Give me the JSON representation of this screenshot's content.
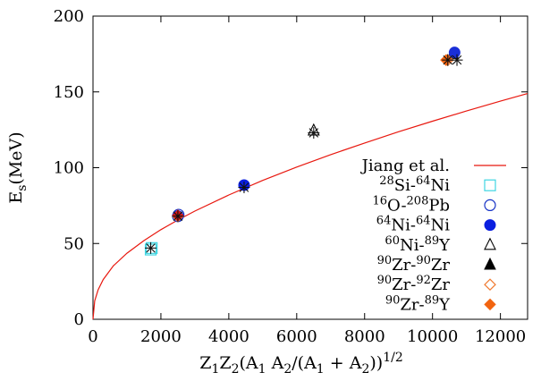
{
  "chart_data": {
    "type": "scatter",
    "xlabel_html": "Z<sub>1</sub>Z<sub>2</sub>(A<sub>1</sub> A<sub>2</sub>/(A<sub>1</sub> + A<sub>2</sub>))<sup>1/2</sup>",
    "xlabel": "Z1Z2(A1 A2/(A1 + A2))^1/2",
    "ylabel": "Es(MeV)",
    "xlim": [
      0,
      12800
    ],
    "ylim": [
      0,
      200
    ],
    "xticks": [
      0,
      2000,
      4000,
      6000,
      8000,
      10000,
      12000
    ],
    "yticks": [
      0,
      50,
      100,
      150,
      200
    ],
    "grid": false,
    "legend_position": "right",
    "curve": {
      "name": "Jiang et al.",
      "color": "#e8180f",
      "x": [
        0,
        50,
        150,
        300,
        600,
        1000,
        1500,
        2000,
        2500,
        3000,
        4000,
        5000,
        6000,
        7000,
        8000,
        9000,
        10000,
        11000,
        12000,
        12800
      ],
      "y": [
        0,
        12.1,
        19.4,
        26.2,
        35.3,
        43.6,
        51.9,
        59.1,
        65.5,
        71.4,
        82.0,
        91.6,
        100.4,
        108.6,
        116.3,
        123.7,
        130.7,
        137.4,
        143.9,
        148.9
      ]
    },
    "series": [
      {
        "name": "28Si-64Ni",
        "marker": "square-open",
        "color": "#3fd6e2",
        "points": [
          [
            1700,
            46
          ],
          [
            1730,
            47
          ]
        ]
      },
      {
        "name": "16O-208Pb",
        "marker": "circle-open",
        "color": "#1733c6",
        "points": [
          [
            2500,
            68
          ],
          [
            2520,
            69
          ]
        ]
      },
      {
        "name": "64Ni-64Ni",
        "marker": "circle-filled",
        "color": "#0a1fe0",
        "points": [
          [
            4450,
            88.5
          ]
        ]
      },
      {
        "name": "60Ni-89Y",
        "marker": "triangle-open",
        "color": "#000000",
        "points": [
          [
            6500,
            124.5
          ]
        ]
      },
      {
        "name": "90Zr-90Zr",
        "marker": "triangle-filled",
        "color": "#000000",
        "points": [
          [
            10600,
            175
          ]
        ]
      },
      {
        "name": "90Zr-92Zr",
        "marker": "diamond-open",
        "color": "#f07a30",
        "points": [
          [
            2500,
            68
          ],
          [
            10450,
            171
          ]
        ]
      },
      {
        "name": "90Zr-89Y",
        "marker": "diamond-filled",
        "color": "#f26410",
        "points": [
          [
            10400,
            171
          ]
        ]
      }
    ],
    "stars": {
      "color": "#111111",
      "points": [
        [
          1700,
          47
        ],
        [
          2500,
          68
        ],
        [
          4450,
          87
        ],
        [
          6500,
          123
        ],
        [
          10450,
          171
        ],
        [
          10720,
          171
        ]
      ]
    },
    "extra_markers": [
      {
        "marker": "circle-filled",
        "color": "#1a2fd8",
        "x": 10650,
        "y": 176
      },
      {
        "marker": "diamond-filled",
        "color": "#d81818",
        "x": 2500,
        "y": 68.5
      }
    ],
    "legend": [
      {
        "label": "Jiang et al.",
        "marker": "line",
        "color": "#e8180f"
      },
      {
        "label_parts": [
          [
            "sup",
            "28"
          ],
          [
            "t",
            "Si-"
          ],
          [
            "sup",
            "64"
          ],
          [
            "t",
            "Ni"
          ]
        ],
        "marker": "square-open",
        "color": "#3fd6e2"
      },
      {
        "label_parts": [
          [
            "sup",
            "16"
          ],
          [
            "t",
            "O-"
          ],
          [
            "sup",
            "208"
          ],
          [
            "t",
            "Pb"
          ]
        ],
        "marker": "circle-open",
        "color": "#1733c6"
      },
      {
        "label_parts": [
          [
            "sup",
            "64"
          ],
          [
            "t",
            "Ni-"
          ],
          [
            "sup",
            "64"
          ],
          [
            "t",
            "Ni"
          ]
        ],
        "marker": "circle-filled",
        "color": "#0a1fe0"
      },
      {
        "label_parts": [
          [
            "sup",
            "60"
          ],
          [
            "t",
            "Ni-"
          ],
          [
            "sup",
            "89"
          ],
          [
            "t",
            "Y"
          ]
        ],
        "marker": "triangle-open",
        "color": "#000000"
      },
      {
        "label_parts": [
          [
            "sup",
            "90"
          ],
          [
            "t",
            "Zr-"
          ],
          [
            "sup",
            "90"
          ],
          [
            "t",
            "Zr"
          ]
        ],
        "marker": "triangle-filled",
        "color": "#000000"
      },
      {
        "label_parts": [
          [
            "sup",
            "90"
          ],
          [
            "t",
            "Zr-"
          ],
          [
            "sup",
            "92"
          ],
          [
            "t",
            "Zr"
          ]
        ],
        "marker": "diamond-open",
        "color": "#f07a30"
      },
      {
        "label_parts": [
          [
            "sup",
            "90"
          ],
          [
            "t",
            "Zr-"
          ],
          [
            "sup",
            "89"
          ],
          [
            "t",
            "Y"
          ]
        ],
        "marker": "diamond-filled",
        "color": "#f26410"
      }
    ]
  }
}
